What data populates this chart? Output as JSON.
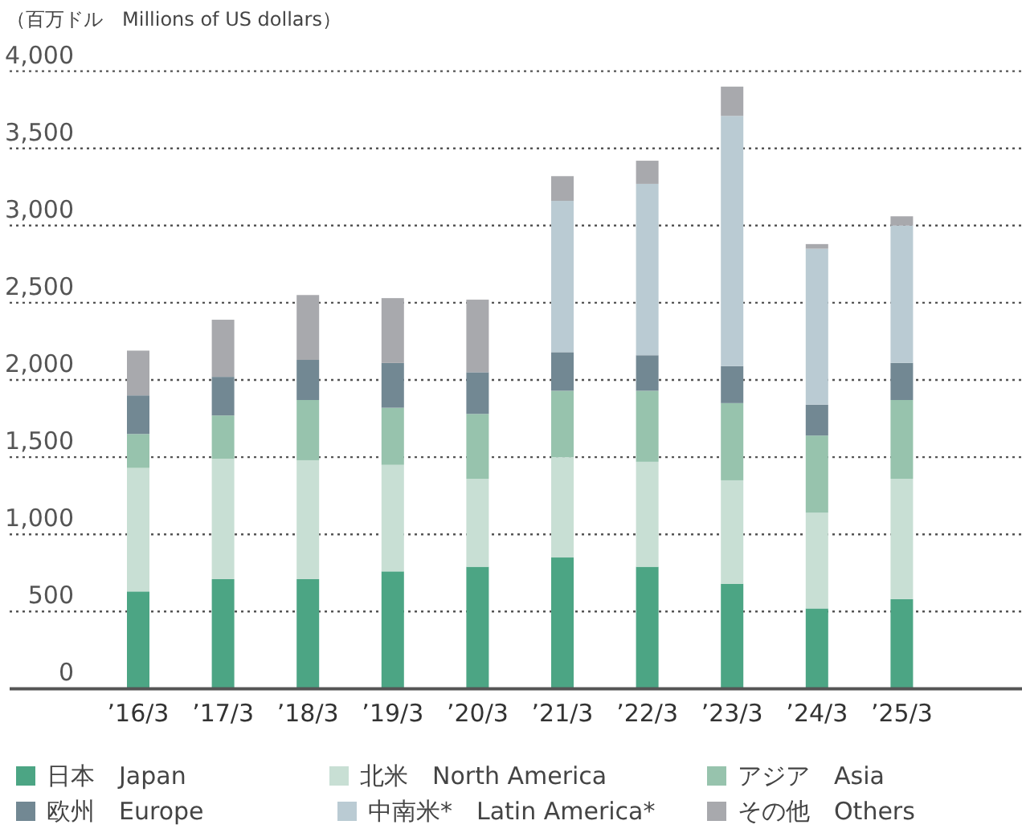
{
  "chart_data": {
    "type": "bar",
    "stacked": true,
    "ylabel": "（百万ドル　Millions of US dollars）",
    "categories": [
      "’16/3",
      "’17/3",
      "’18/3",
      "’19/3",
      "’20/3",
      "’21/3",
      "’22/3",
      "’23/3",
      "’24/3",
      "’25/3"
    ],
    "series": [
      {
        "name": "日本　Japan",
        "color": "#4ca584",
        "values": [
          630,
          710,
          710,
          760,
          790,
          850,
          790,
          680,
          520,
          580
        ]
      },
      {
        "name": "北米　North America",
        "color": "#c8dfd4",
        "values": [
          800,
          780,
          770,
          690,
          570,
          650,
          680,
          670,
          620,
          780
        ]
      },
      {
        "name": "アジア　Asia",
        "color": "#97c3ad",
        "values": [
          220,
          280,
          390,
          370,
          420,
          430,
          460,
          500,
          500,
          510
        ]
      },
      {
        "name": "欧州　Europe",
        "color": "#728893",
        "values": [
          250,
          250,
          260,
          290,
          270,
          250,
          230,
          240,
          200,
          240
        ]
      },
      {
        "name": "中南米*　Latin America*",
        "color": "#bacbd3",
        "values": [
          0,
          0,
          0,
          0,
          0,
          980,
          1110,
          1620,
          1010,
          890
        ]
      },
      {
        "name": "その他　Others",
        "color": "#a8a9ad",
        "values": [
          290,
          370,
          420,
          420,
          470,
          160,
          150,
          190,
          30,
          60
        ]
      }
    ],
    "ylim": [
      0,
      4000
    ],
    "yticks": [
      0,
      500,
      {
        "value": 1000,
        "label": "1,000"
      },
      {
        "value": 1500,
        "label": "1,500"
      },
      {
        "value": 2000,
        "label": "2,000"
      },
      {
        "value": 2500,
        "label": "2,500"
      },
      {
        "value": 3000,
        "label": "3,000"
      },
      {
        "value": 3500,
        "label": "3,500"
      },
      {
        "value": 4000,
        "label": "4,000"
      }
    ],
    "grid": "y",
    "legend": "bottom"
  }
}
